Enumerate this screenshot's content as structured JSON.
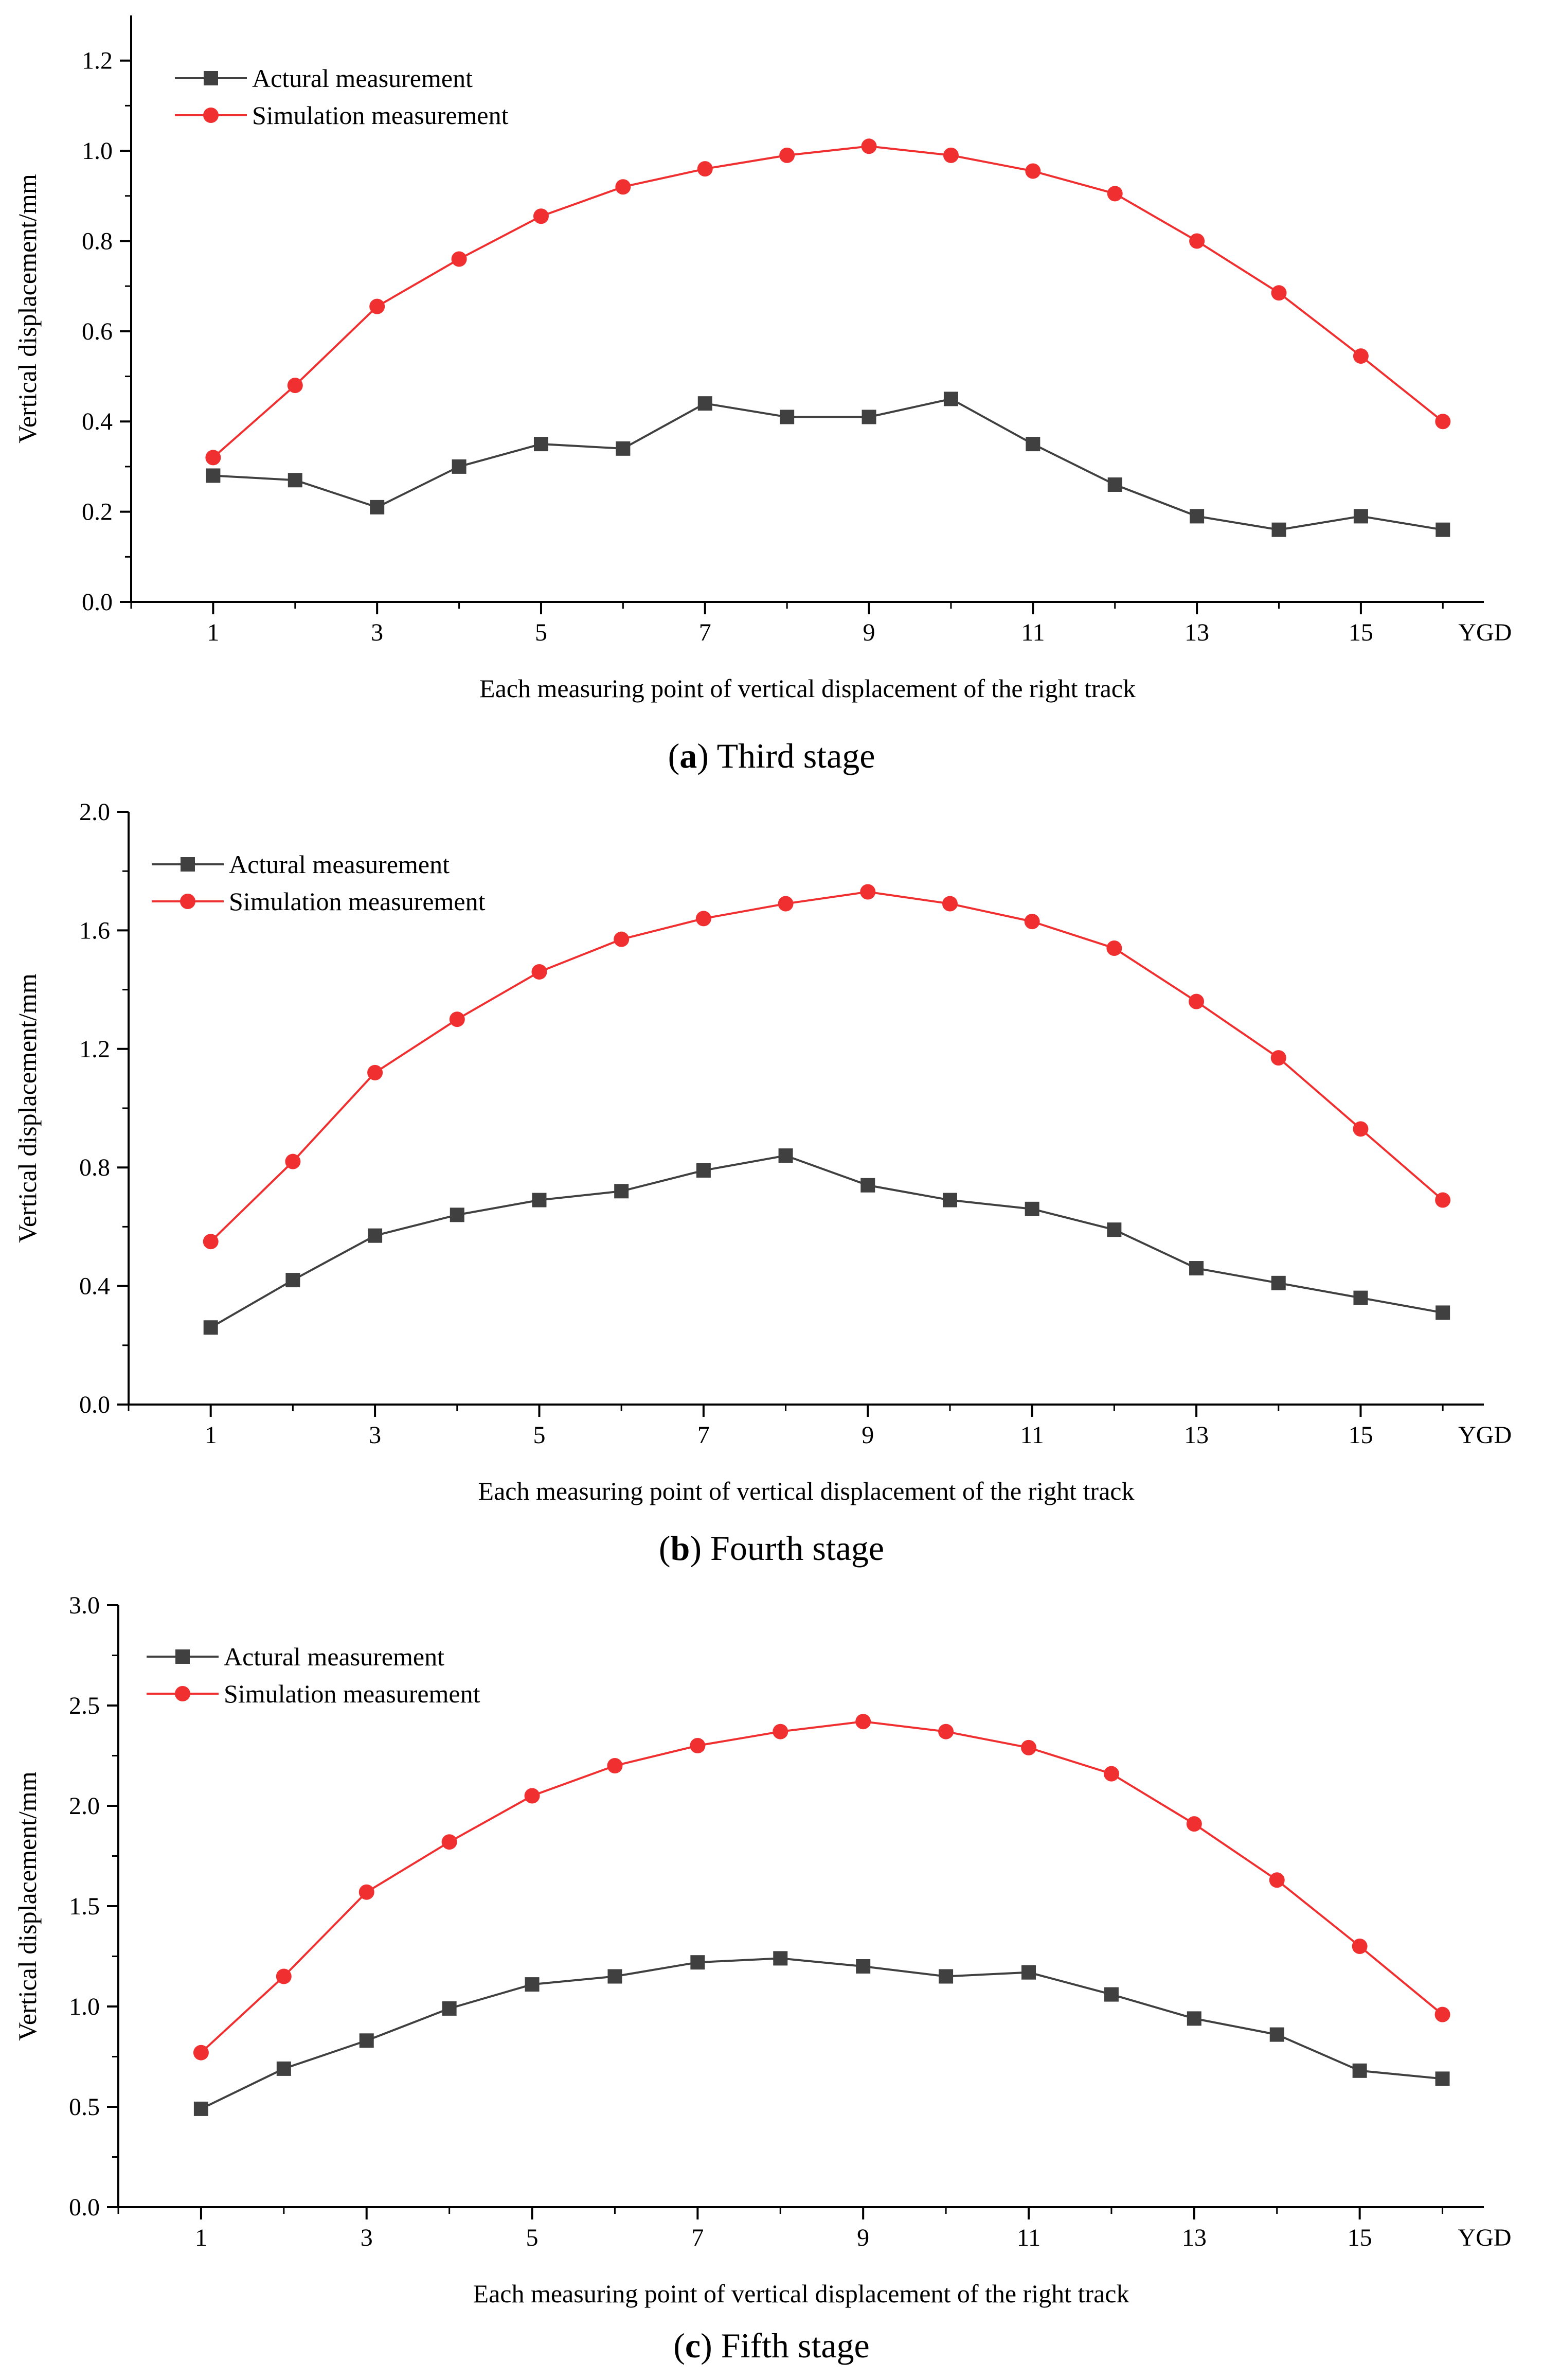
{
  "chart_data": [
    {
      "type": "line",
      "panel_letter": "a",
      "caption_title": "Third stage",
      "xlabel": "Each measuring point of vertical displacement of the right track",
      "ylabel": "Vertical displacement/mm",
      "x_end_label": "YGD",
      "xtick_labels": [
        "1",
        "3",
        "5",
        "7",
        "9",
        "11",
        "13",
        "15"
      ],
      "x": [
        1,
        2,
        3,
        4,
        5,
        6,
        7,
        8,
        9,
        10,
        11,
        12,
        13,
        14,
        15,
        16
      ],
      "xlim": [
        0,
        16.5
      ],
      "ylim": [
        0,
        1.3
      ],
      "yticks": [
        0.0,
        0.2,
        0.4,
        0.6,
        0.8,
        1.0,
        1.2
      ],
      "ytick_labels": [
        "0.0",
        "0.2",
        "0.4",
        "0.6",
        "0.8",
        "1.0",
        "1.2"
      ],
      "series": [
        {
          "name": "Actural measurement",
          "marker": "square",
          "color": "#404040",
          "values": [
            0.28,
            0.27,
            0.21,
            0.3,
            0.35,
            0.34,
            0.44,
            0.41,
            0.41,
            0.45,
            0.35,
            0.26,
            0.19,
            0.16,
            0.19,
            0.16
          ]
        },
        {
          "name": "Simulation measurement",
          "marker": "circle",
          "color": "#f03030",
          "values": [
            0.32,
            0.48,
            0.655,
            0.76,
            0.855,
            0.92,
            0.96,
            0.99,
            1.01,
            0.99,
            0.955,
            0.905,
            0.8,
            0.685,
            0.545,
            0.4
          ]
        }
      ]
    },
    {
      "type": "line",
      "panel_letter": "b",
      "caption_title": "Fourth stage",
      "xlabel": "Each measuring point of vertical displacement of the right track",
      "ylabel": "Vertical displacement/mm",
      "x_end_label": "YGD",
      "xtick_labels": [
        "1",
        "3",
        "5",
        "7",
        "9",
        "11",
        "13",
        "15"
      ],
      "x": [
        1,
        2,
        3,
        4,
        5,
        6,
        7,
        8,
        9,
        10,
        11,
        12,
        13,
        14,
        15,
        16
      ],
      "xlim": [
        0,
        16.5
      ],
      "ylim": [
        0,
        2.0
      ],
      "yticks": [
        0.0,
        0.4,
        0.8,
        1.2,
        1.6,
        2.0
      ],
      "ytick_labels": [
        "0.0",
        "0.4",
        "0.8",
        "1.2",
        "1.6",
        "2.0"
      ],
      "series": [
        {
          "name": "Actural measurement",
          "marker": "square",
          "color": "#404040",
          "values": [
            0.26,
            0.42,
            0.57,
            0.64,
            0.69,
            0.72,
            0.79,
            0.84,
            0.74,
            0.69,
            0.66,
            0.59,
            0.46,
            0.41,
            0.36,
            0.31
          ]
        },
        {
          "name": "Simulation measurement",
          "marker": "circle",
          "color": "#f03030",
          "values": [
            0.55,
            0.82,
            1.12,
            1.3,
            1.46,
            1.57,
            1.64,
            1.69,
            1.73,
            1.69,
            1.63,
            1.54,
            1.36,
            1.17,
            0.93,
            0.69
          ]
        }
      ]
    },
    {
      "type": "line",
      "panel_letter": "c",
      "caption_title": "Fifth stage",
      "xlabel": "Each measuring point of vertical displacement of the right track",
      "ylabel": "Vertical displacement/mm",
      "x_end_label": "YGD",
      "xtick_labels": [
        "1",
        "3",
        "5",
        "7",
        "9",
        "11",
        "13",
        "15"
      ],
      "x": [
        1,
        2,
        3,
        4,
        5,
        6,
        7,
        8,
        9,
        10,
        11,
        12,
        13,
        14,
        15,
        16
      ],
      "xlim": [
        0,
        16.5
      ],
      "ylim": [
        0,
        3.0
      ],
      "yticks": [
        0.0,
        0.5,
        1.0,
        1.5,
        2.0,
        2.5,
        3.0
      ],
      "ytick_labels": [
        "0.0",
        "0.5",
        "1.0",
        "1.5",
        "2.0",
        "2.5",
        "3.0"
      ],
      "series": [
        {
          "name": "Actural measurement",
          "marker": "square",
          "color": "#404040",
          "values": [
            0.49,
            0.69,
            0.83,
            0.99,
            1.11,
            1.15,
            1.22,
            1.24,
            1.2,
            1.15,
            1.17,
            1.06,
            0.94,
            0.86,
            0.68,
            0.64
          ]
        },
        {
          "name": "Simulation measurement",
          "marker": "circle",
          "color": "#f03030",
          "values": [
            0.77,
            1.15,
            1.57,
            1.82,
            2.05,
            2.2,
            2.3,
            2.37,
            2.42,
            2.37,
            2.29,
            2.16,
            1.91,
            1.63,
            1.3,
            0.96
          ]
        }
      ]
    }
  ]
}
